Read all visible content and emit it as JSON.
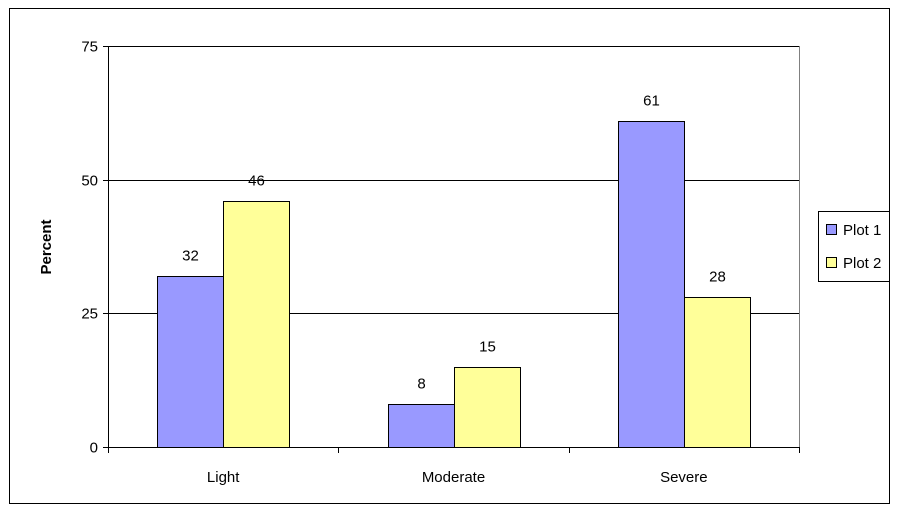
{
  "chart_data": {
    "type": "bar",
    "categories": [
      "Light",
      "Moderate",
      "Severe"
    ],
    "series": [
      {
        "name": "Plot 1",
        "values": [
          32,
          8,
          61
        ],
        "labels": [
          "32",
          "8",
          "61"
        ],
        "color": "#9999FF"
      },
      {
        "name": "Plot 2",
        "values": [
          46,
          15,
          28
        ],
        "labels": [
          "46",
          "15",
          "28"
        ],
        "color": "#FFFF99"
      }
    ],
    "title": "",
    "xlabel": "",
    "ylabel": "Percent",
    "ylim": [
      0,
      75
    ],
    "yticks": [
      0,
      25,
      50,
      75
    ],
    "ytick_labels": [
      "0",
      "25",
      "50",
      "75"
    ],
    "grid": true,
    "legend_position": "right"
  }
}
